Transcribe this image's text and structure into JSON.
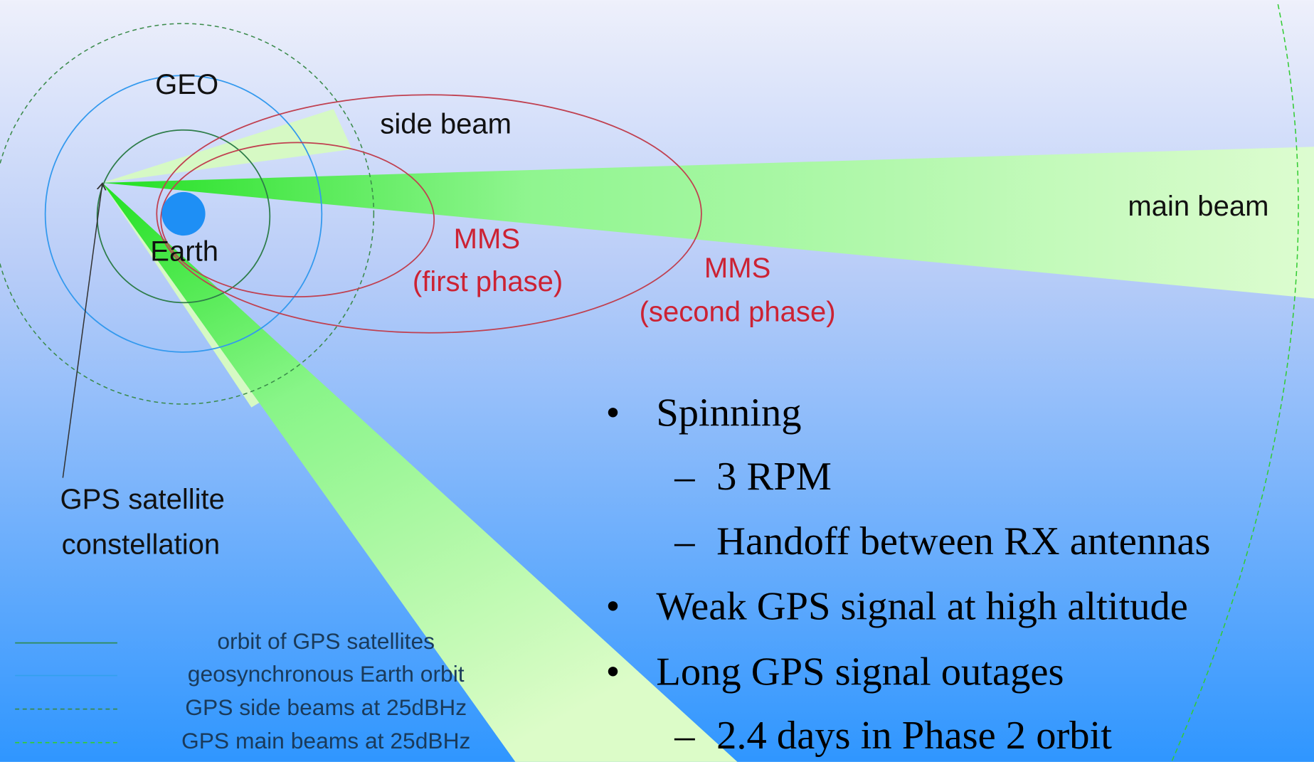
{
  "diagram": {
    "labels": {
      "geo": "GEO",
      "side_beam": "side beam",
      "earth": "Earth",
      "mms_first": "MMS",
      "mms_first_phase": "(first phase)",
      "mms_second": "MMS",
      "mms_second_phase": "(second phase)",
      "main_beam": "main beam",
      "gps_line1": "GPS satellite",
      "gps_line2": "constellation"
    },
    "legend": [
      "orbit of GPS satellites",
      "geosynchronous Earth orbit",
      "GPS side beams at 25dBHz",
      "GPS main beams at 25dBHz"
    ]
  },
  "bullets": [
    {
      "text": "Spinning",
      "sub": [
        "3 RPM",
        "Handoff between RX antennas"
      ]
    },
    {
      "text": "Weak GPS signal at high altitude"
    },
    {
      "text": "Long GPS signal outages",
      "sub": [
        "2.4 days in Phase 2 orbit"
      ]
    }
  ]
}
